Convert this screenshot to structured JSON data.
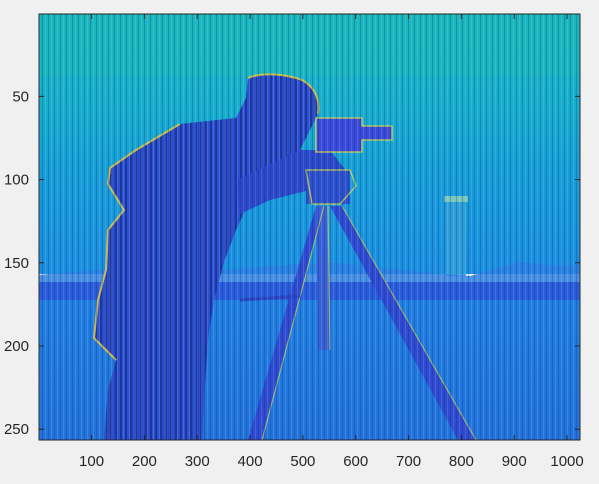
{
  "chart_data": {
    "type": "heatmap",
    "title": "",
    "xlabel": "",
    "ylabel": "",
    "x_ticks": [
      100,
      200,
      300,
      400,
      500,
      600,
      700,
      800,
      900,
      1000
    ],
    "y_ticks": [
      50,
      100,
      150,
      200,
      250
    ],
    "xlim": [
      0.5,
      1024.5
    ],
    "ylim": [
      0.5,
      256.5
    ],
    "y_direction": "reversed",
    "colormap": "parula",
    "grid": false,
    "legend": "none",
    "image_content": "cameraman photograph stretched horizontally with vertical column striping"
  },
  "colors": {
    "background": "#f0f0f0",
    "sky": "#17b2c4",
    "ground": "#1f84d6",
    "figure": "#2a58d8",
    "figure_dark": "#2b3fc2",
    "edge_highlight": "#e3c83a",
    "axes_line": "#262626"
  }
}
